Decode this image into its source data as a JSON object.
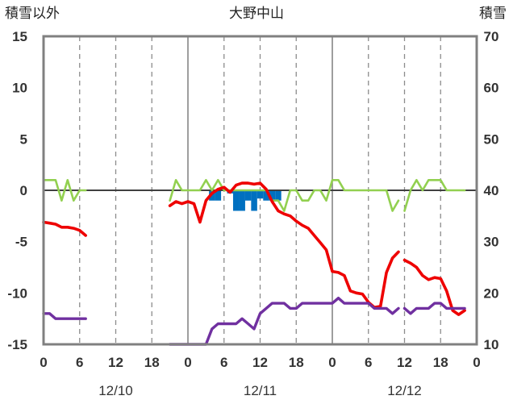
{
  "chart_data": {
    "type": "line",
    "title": "大野中山",
    "left_axis_label": "積雪以外",
    "right_axis_label": "積雪",
    "left_ylim": [
      -15,
      15
    ],
    "right_ylim": [
      10,
      70
    ],
    "left_ticks": [
      "15",
      "10",
      "5",
      "0",
      "-5",
      "-10",
      "-15"
    ],
    "right_ticks": [
      "70",
      "60",
      "50",
      "40",
      "30",
      "20",
      "10"
    ],
    "x_tick_labels": [
      "0",
      "6",
      "12",
      "18",
      "0",
      "6",
      "12",
      "18",
      "0",
      "6",
      "12",
      "18",
      "0"
    ],
    "date_labels": [
      "12/10",
      "12/11",
      "12/12"
    ],
    "xlim_hours": [
      0,
      72
    ],
    "grid": "dashed vertical every 6 hours",
    "colors": {
      "temperature": "#ee0000",
      "precipitation": "#0070c0",
      "wind": "#92d050",
      "snow_depth": "#7030a0",
      "frame": "#808080"
    },
    "series": [
      {
        "key": "temperature",
        "axis": "left",
        "segments": [
          [
            [
              0,
              -3.1
            ],
            [
              1,
              -3.2
            ],
            [
              2,
              -3.3
            ],
            [
              3,
              -3.6
            ],
            [
              4,
              -3.6
            ],
            [
              5,
              -3.7
            ],
            [
              6,
              -3.9
            ],
            [
              7,
              -4.4
            ]
          ],
          [
            [
              21,
              -1.5
            ],
            [
              22,
              -1.1
            ],
            [
              23,
              -1.3
            ],
            [
              24,
              -1.1
            ],
            [
              25,
              -1.3
            ],
            [
              26,
              -3.1
            ],
            [
              27,
              -1.0
            ],
            [
              28,
              -0.3
            ],
            [
              29,
              0.1
            ],
            [
              30,
              0.3
            ],
            [
              31,
              -0.2
            ],
            [
              32,
              0.5
            ],
            [
              33,
              0.7
            ],
            [
              34,
              0.7
            ],
            [
              35,
              0.6
            ],
            [
              36,
              0.7
            ],
            [
              37,
              0.1
            ],
            [
              38,
              -1.1
            ],
            [
              39,
              -2.0
            ],
            [
              40,
              -2.3
            ],
            [
              41,
              -2.5
            ],
            [
              42,
              -3.0
            ],
            [
              43,
              -3.4
            ],
            [
              44,
              -3.7
            ],
            [
              45,
              -4.4
            ],
            [
              46,
              -5.1
            ],
            [
              47,
              -5.8
            ],
            [
              48,
              -7.9
            ],
            [
              49,
              -8.0
            ],
            [
              50,
              -8.3
            ],
            [
              51,
              -9.8
            ],
            [
              52,
              -10.0
            ],
            [
              53,
              -10.1
            ],
            [
              54,
              -10.9
            ],
            [
              55,
              -11.4
            ],
            [
              56,
              -11.3
            ],
            [
              57,
              -8.0
            ],
            [
              58,
              -6.6
            ],
            [
              59,
              -6.0
            ]
          ],
          [
            [
              60,
              -6.8
            ],
            [
              61,
              -7.1
            ],
            [
              62,
              -7.5
            ],
            [
              63,
              -8.3
            ],
            [
              64,
              -8.7
            ],
            [
              65,
              -8.5
            ],
            [
              66,
              -8.6
            ],
            [
              67,
              -9.8
            ],
            [
              68,
              -11.7
            ],
            [
              69,
              -12.1
            ],
            [
              70,
              -11.7
            ]
          ]
        ]
      },
      {
        "key": "wind",
        "axis": "left",
        "segments": [
          [
            [
              0,
              1
            ],
            [
              1,
              1
            ],
            [
              2,
              1
            ],
            [
              3,
              -1
            ],
            [
              4,
              1
            ],
            [
              5,
              -1
            ],
            [
              6,
              0
            ],
            [
              7,
              0
            ]
          ],
          [
            [
              21,
              -1
            ],
            [
              22,
              1
            ],
            [
              23,
              0
            ],
            [
              24,
              0
            ],
            [
              25,
              0
            ],
            [
              26,
              0
            ],
            [
              27,
              1
            ],
            [
              28,
              0
            ],
            [
              29,
              1
            ],
            [
              30,
              0
            ],
            [
              31,
              0
            ],
            [
              32,
              0
            ],
            [
              33,
              0
            ],
            [
              34,
              0
            ],
            [
              35,
              0
            ],
            [
              36,
              0
            ],
            [
              37,
              0
            ],
            [
              38,
              -1
            ],
            [
              39,
              -1
            ],
            [
              40,
              -2
            ],
            [
              41,
              0
            ],
            [
              42,
              0
            ],
            [
              43,
              -1
            ],
            [
              44,
              -1
            ],
            [
              45,
              0
            ],
            [
              46,
              0
            ],
            [
              47,
              -1
            ],
            [
              48,
              1
            ],
            [
              49,
              1
            ],
            [
              50,
              0
            ],
            [
              51,
              0
            ],
            [
              52,
              0
            ],
            [
              53,
              0
            ],
            [
              54,
              0
            ],
            [
              55,
              0
            ],
            [
              56,
              0
            ],
            [
              57,
              0
            ],
            [
              58,
              -2
            ],
            [
              59,
              -1
            ]
          ],
          [
            [
              60,
              -2
            ],
            [
              61,
              0
            ],
            [
              62,
              1
            ],
            [
              63,
              0
            ],
            [
              64,
              1
            ],
            [
              65,
              1
            ],
            [
              66,
              1
            ],
            [
              67,
              0
            ],
            [
              68,
              0
            ],
            [
              69,
              0
            ],
            [
              70,
              0
            ]
          ]
        ]
      },
      {
        "key": "snow_depth",
        "axis": "right",
        "segments": [
          [
            [
              0,
              16
            ],
            [
              1,
              16
            ],
            [
              2,
              15
            ],
            [
              3,
              15
            ],
            [
              4,
              15
            ],
            [
              5,
              15
            ],
            [
              6,
              15
            ],
            [
              7,
              15
            ]
          ],
          [
            [
              21,
              10
            ],
            [
              22,
              10
            ],
            [
              23,
              10
            ],
            [
              24,
              10
            ],
            [
              25,
              10
            ],
            [
              26,
              10
            ],
            [
              27,
              10
            ],
            [
              28,
              13
            ],
            [
              29,
              14
            ],
            [
              30,
              14
            ],
            [
              31,
              14
            ],
            [
              32,
              14
            ],
            [
              33,
              15
            ],
            [
              34,
              14
            ],
            [
              35,
              13
            ],
            [
              36,
              16
            ],
            [
              37,
              17
            ],
            [
              38,
              18
            ],
            [
              39,
              18
            ],
            [
              40,
              18
            ],
            [
              41,
              17
            ],
            [
              42,
              17
            ],
            [
              43,
              18
            ],
            [
              44,
              18
            ],
            [
              45,
              18
            ],
            [
              46,
              18
            ],
            [
              47,
              18
            ],
            [
              48,
              18
            ],
            [
              49,
              19
            ],
            [
              50,
              18
            ],
            [
              51,
              18
            ],
            [
              52,
              18
            ],
            [
              53,
              18
            ],
            [
              54,
              18
            ],
            [
              55,
              17
            ],
            [
              56,
              17
            ],
            [
              57,
              17
            ],
            [
              58,
              16
            ],
            [
              59,
              17
            ]
          ],
          [
            [
              60,
              17
            ],
            [
              61,
              16
            ],
            [
              62,
              17
            ],
            [
              63,
              17
            ],
            [
              64,
              17
            ],
            [
              65,
              18
            ],
            [
              66,
              18
            ],
            [
              67,
              17
            ],
            [
              68,
              17
            ],
            [
              69,
              17
            ],
            [
              70,
              17
            ]
          ]
        ]
      },
      {
        "key": "precipitation",
        "axis": "left",
        "bars": [
          [
            28,
            -1.0
          ],
          [
            29,
            -1.0
          ],
          [
            31,
            -0.3
          ],
          [
            32,
            -2.0
          ],
          [
            33,
            -2.0
          ],
          [
            34,
            -1.0
          ],
          [
            35,
            -2.0
          ],
          [
            36,
            -0.8
          ],
          [
            37,
            -1.0
          ],
          [
            38,
            -1.0
          ],
          [
            39,
            -1.0
          ]
        ]
      }
    ]
  }
}
